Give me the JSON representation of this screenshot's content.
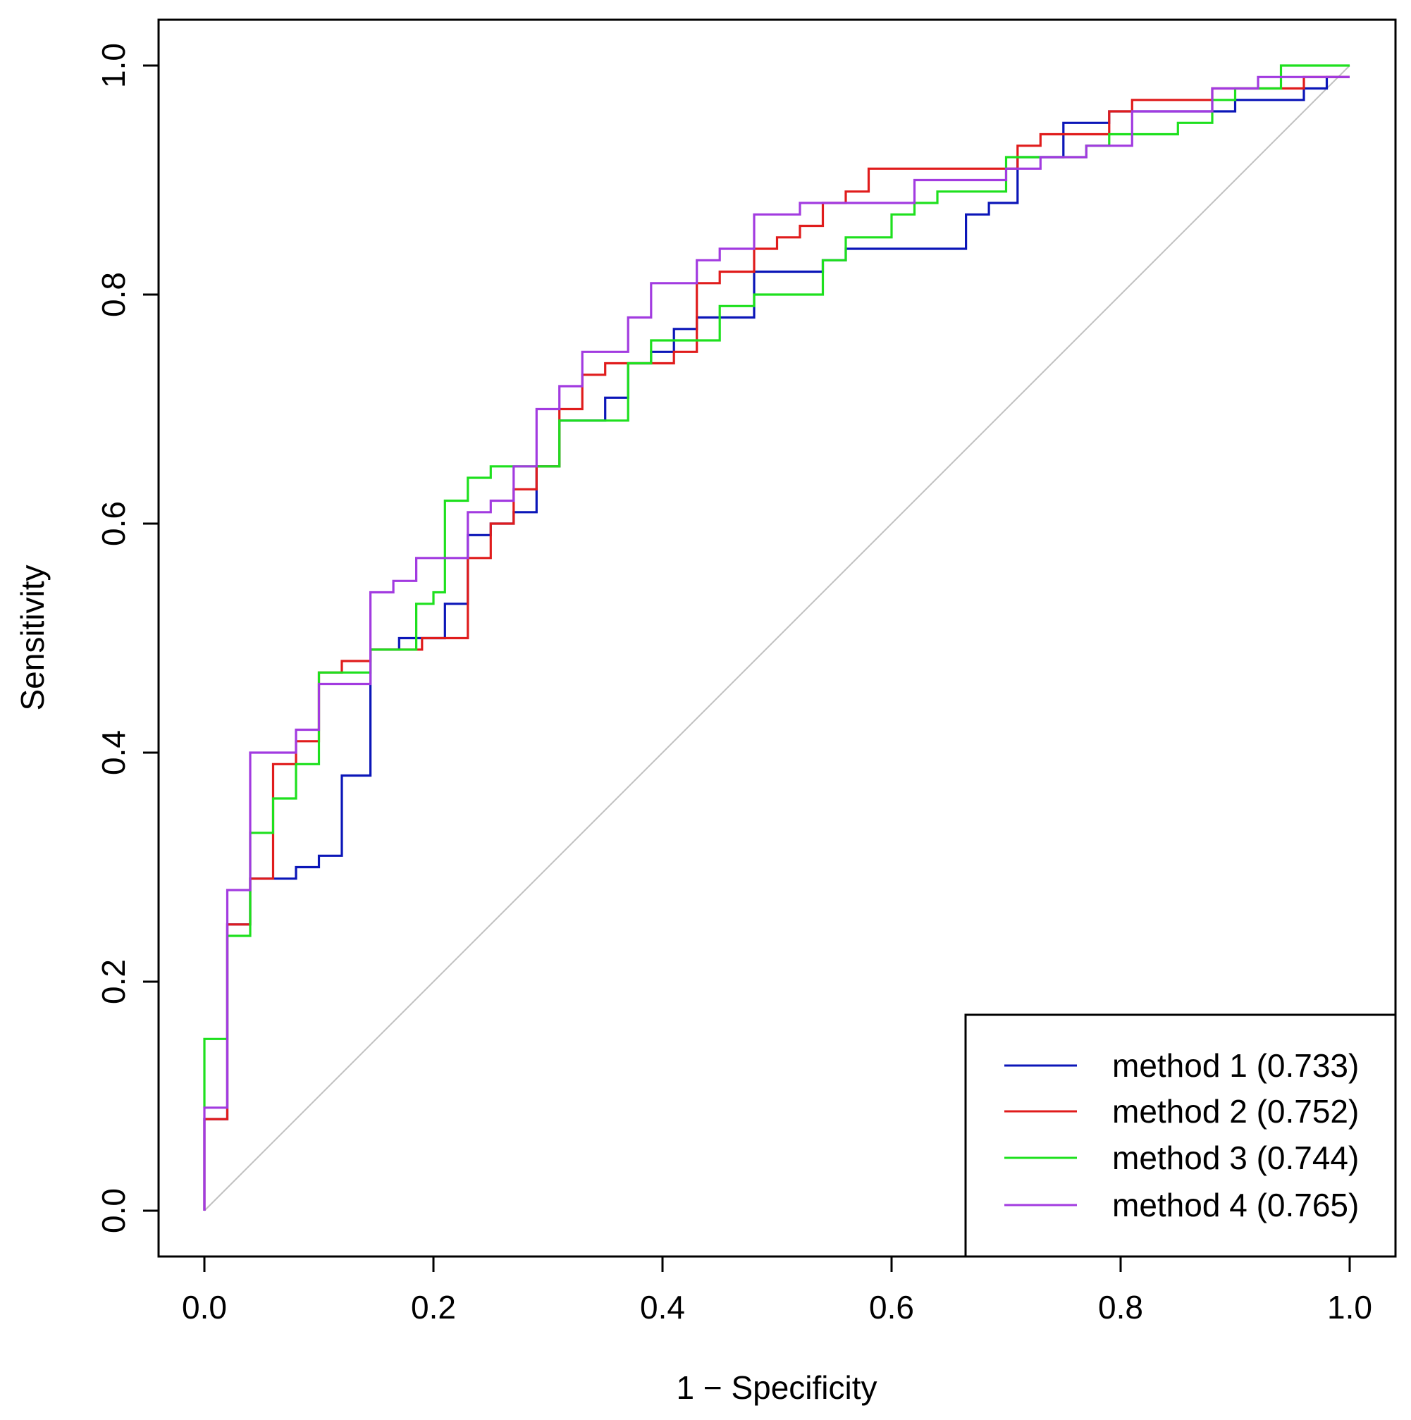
{
  "chart_data": {
    "type": "line",
    "title": "",
    "xlabel": "1 − Specificity",
    "ylabel": "Sensitivity",
    "xlim": [
      -0.04,
      1.04
    ],
    "ylim": [
      -0.04,
      1.04
    ],
    "xticks": [
      0.0,
      0.2,
      0.4,
      0.6,
      0.8,
      1.0
    ],
    "yticks": [
      0.0,
      0.2,
      0.4,
      0.6,
      0.8,
      1.0
    ],
    "xtick_labels": [
      "0.0",
      "0.2",
      "0.4",
      "0.6",
      "0.8",
      "1.0"
    ],
    "ytick_labels": [
      "0.0",
      "0.2",
      "0.4",
      "0.6",
      "0.8",
      "1.0"
    ],
    "grid": false,
    "legend_position": "bottom-right",
    "reference_line": {
      "x": [
        0,
        1
      ],
      "y": [
        0,
        1
      ],
      "color": "#c0c0c0"
    },
    "series": [
      {
        "name": "method 1 (0.733)",
        "color": "#0b16b8",
        "x": [
          0,
          0,
          0.02,
          0.02,
          0.04,
          0.04,
          0.08,
          0.08,
          0.1,
          0.1,
          0.12,
          0.12,
          0.145,
          0.145,
          0.17,
          0.17,
          0.19,
          0.19,
          0.21,
          0.21,
          0.23,
          0.23,
          0.25,
          0.25,
          0.27,
          0.27,
          0.29,
          0.29,
          0.31,
          0.31,
          0.35,
          0.35,
          0.37,
          0.37,
          0.39,
          0.39,
          0.41,
          0.41,
          0.43,
          0.43,
          0.48,
          0.48,
          0.54,
          0.54,
          0.56,
          0.56,
          0.58,
          0.58,
          0.665,
          0.665,
          0.685,
          0.685,
          0.71,
          0.71,
          0.75,
          0.75,
          0.79,
          0.79,
          0.81,
          0.81,
          0.9,
          0.9,
          0.92,
          0.92,
          0.96,
          0.96,
          0.98,
          0.98,
          1.0
        ],
        "y": [
          0,
          0.08,
          0.08,
          0.25,
          0.25,
          0.29,
          0.29,
          0.3,
          0.3,
          0.31,
          0.31,
          0.38,
          0.38,
          0.49,
          0.49,
          0.5,
          0.5,
          0.5,
          0.5,
          0.53,
          0.53,
          0.59,
          0.59,
          0.6,
          0.6,
          0.61,
          0.61,
          0.65,
          0.65,
          0.69,
          0.69,
          0.71,
          0.71,
          0.74,
          0.74,
          0.75,
          0.75,
          0.77,
          0.77,
          0.78,
          0.78,
          0.82,
          0.82,
          0.83,
          0.83,
          0.84,
          0.84,
          0.84,
          0.84,
          0.87,
          0.87,
          0.88,
          0.88,
          0.92,
          0.92,
          0.95,
          0.95,
          0.96,
          0.96,
          0.96,
          0.96,
          0.97,
          0.97,
          0.97,
          0.97,
          0.98,
          0.98,
          0.99,
          0.99
        ]
      },
      {
        "name": "method 2 (0.752)",
        "color": "#e01c1c",
        "x": [
          0,
          0,
          0.02,
          0.02,
          0.04,
          0.04,
          0.06,
          0.06,
          0.08,
          0.08,
          0.1,
          0.1,
          0.12,
          0.12,
          0.145,
          0.145,
          0.19,
          0.19,
          0.23,
          0.23,
          0.25,
          0.25,
          0.27,
          0.27,
          0.29,
          0.29,
          0.31,
          0.31,
          0.33,
          0.33,
          0.35,
          0.35,
          0.39,
          0.39,
          0.41,
          0.41,
          0.43,
          0.43,
          0.45,
          0.45,
          0.48,
          0.48,
          0.5,
          0.5,
          0.52,
          0.52,
          0.54,
          0.54,
          0.56,
          0.56,
          0.58,
          0.58,
          0.62,
          0.62,
          0.71,
          0.71,
          0.73,
          0.73,
          0.75,
          0.75,
          0.79,
          0.79,
          0.81,
          0.81,
          0.88,
          0.88,
          0.92,
          0.92,
          0.96,
          0.96,
          0.98,
          0.98,
          1.0
        ],
        "y": [
          0,
          0.08,
          0.08,
          0.25,
          0.25,
          0.29,
          0.29,
          0.39,
          0.39,
          0.41,
          0.41,
          0.47,
          0.47,
          0.48,
          0.48,
          0.49,
          0.49,
          0.5,
          0.5,
          0.57,
          0.57,
          0.6,
          0.6,
          0.63,
          0.63,
          0.65,
          0.65,
          0.7,
          0.7,
          0.73,
          0.73,
          0.74,
          0.74,
          0.74,
          0.74,
          0.75,
          0.75,
          0.81,
          0.81,
          0.82,
          0.82,
          0.84,
          0.84,
          0.85,
          0.85,
          0.86,
          0.86,
          0.88,
          0.88,
          0.89,
          0.89,
          0.91,
          0.91,
          0.91,
          0.91,
          0.93,
          0.93,
          0.94,
          0.94,
          0.94,
          0.94,
          0.96,
          0.96,
          0.97,
          0.97,
          0.98,
          0.98,
          0.98,
          0.98,
          0.99,
          0.99,
          0.99,
          0.99
        ]
      },
      {
        "name": "method 3 (0.744)",
        "color": "#1ee01e",
        "x": [
          0,
          0,
          0.02,
          0.02,
          0.04,
          0.04,
          0.06,
          0.06,
          0.08,
          0.08,
          0.1,
          0.1,
          0.145,
          0.145,
          0.185,
          0.185,
          0.2,
          0.2,
          0.21,
          0.21,
          0.23,
          0.23,
          0.25,
          0.25,
          0.31,
          0.31,
          0.37,
          0.37,
          0.39,
          0.39,
          0.41,
          0.41,
          0.45,
          0.45,
          0.48,
          0.48,
          0.54,
          0.54,
          0.56,
          0.56,
          0.6,
          0.6,
          0.62,
          0.62,
          0.64,
          0.64,
          0.7,
          0.7,
          0.75,
          0.75,
          0.77,
          0.77,
          0.79,
          0.79,
          0.85,
          0.85,
          0.88,
          0.88,
          0.9,
          0.9,
          0.94,
          0.94,
          1.0
        ],
        "y": [
          0.09,
          0.15,
          0.15,
          0.24,
          0.24,
          0.33,
          0.33,
          0.36,
          0.36,
          0.39,
          0.39,
          0.47,
          0.47,
          0.49,
          0.49,
          0.53,
          0.53,
          0.54,
          0.54,
          0.62,
          0.62,
          0.64,
          0.64,
          0.65,
          0.65,
          0.69,
          0.69,
          0.74,
          0.74,
          0.76,
          0.76,
          0.76,
          0.76,
          0.79,
          0.79,
          0.8,
          0.8,
          0.83,
          0.83,
          0.85,
          0.85,
          0.87,
          0.87,
          0.88,
          0.88,
          0.89,
          0.89,
          0.92,
          0.92,
          0.92,
          0.92,
          0.93,
          0.93,
          0.94,
          0.94,
          0.95,
          0.95,
          0.97,
          0.97,
          0.98,
          0.98,
          1.0,
          1.0
        ]
      },
      {
        "name": "method 4 (0.765)",
        "color": "#a23be0",
        "x": [
          0,
          0,
          0.02,
          0.02,
          0.04,
          0.04,
          0.06,
          0.06,
          0.08,
          0.08,
          0.1,
          0.1,
          0.145,
          0.145,
          0.165,
          0.165,
          0.185,
          0.185,
          0.23,
          0.23,
          0.25,
          0.25,
          0.27,
          0.27,
          0.29,
          0.29,
          0.31,
          0.31,
          0.33,
          0.33,
          0.37,
          0.37,
          0.39,
          0.39,
          0.41,
          0.41,
          0.43,
          0.43,
          0.45,
          0.45,
          0.48,
          0.48,
          0.52,
          0.52,
          0.62,
          0.62,
          0.7,
          0.7,
          0.73,
          0.73,
          0.77,
          0.77,
          0.81,
          0.81,
          0.88,
          0.88,
          0.92,
          0.92,
          1.0
        ],
        "y": [
          0,
          0.09,
          0.09,
          0.28,
          0.28,
          0.4,
          0.4,
          0.4,
          0.4,
          0.42,
          0.42,
          0.46,
          0.46,
          0.54,
          0.54,
          0.55,
          0.55,
          0.57,
          0.57,
          0.61,
          0.61,
          0.62,
          0.62,
          0.65,
          0.65,
          0.7,
          0.7,
          0.72,
          0.72,
          0.75,
          0.75,
          0.78,
          0.78,
          0.81,
          0.81,
          0.81,
          0.81,
          0.83,
          0.83,
          0.84,
          0.84,
          0.87,
          0.87,
          0.88,
          0.88,
          0.9,
          0.9,
          0.91,
          0.91,
          0.92,
          0.92,
          0.93,
          0.93,
          0.96,
          0.96,
          0.98,
          0.98,
          0.99,
          0.99
        ]
      }
    ]
  }
}
